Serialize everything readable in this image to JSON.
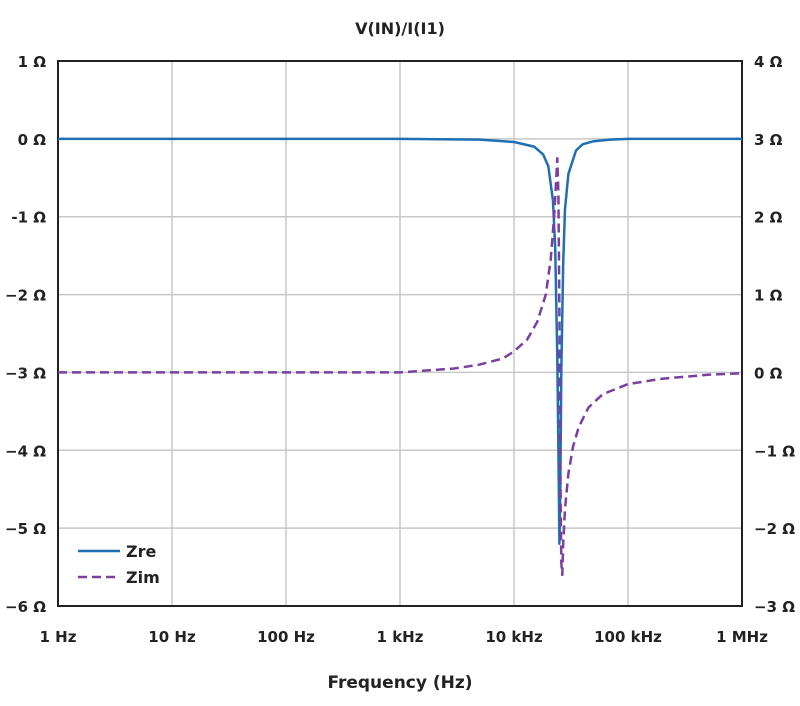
{
  "chart_data": {
    "type": "line",
    "title": "V(IN)/I(I1)",
    "xlabel": "Frequency (Hz)",
    "x_scale": "log",
    "xlim": [
      1,
      1000000
    ],
    "x_ticks": [
      {
        "value": 1,
        "label": "1 Hz"
      },
      {
        "value": 10,
        "label": "10 Hz"
      },
      {
        "value": 100,
        "label": "100 Hz"
      },
      {
        "value": 1000,
        "label": "1 kHz"
      },
      {
        "value": 10000,
        "label": "10 kHz"
      },
      {
        "value": 100000,
        "label": "100 kHz"
      },
      {
        "value": 1000000,
        "label": "1 MHz"
      }
    ],
    "y_left": {
      "lim": [
        -6,
        1
      ],
      "ticks": [
        {
          "value": 1,
          "label": "1 Ω"
        },
        {
          "value": 0,
          "label": "0 Ω"
        },
        {
          "value": -1,
          "label": "-1 Ω"
        },
        {
          "value": -2,
          "label": "−2 Ω"
        },
        {
          "value": -3,
          "label": "−3 Ω"
        },
        {
          "value": -4,
          "label": "−4 Ω"
        },
        {
          "value": -5,
          "label": "−5 Ω"
        },
        {
          "value": -6,
          "label": "−6 Ω"
        }
      ]
    },
    "y_right": {
      "lim": [
        -3,
        4
      ],
      "ticks": [
        {
          "value": 4,
          "label": "4 Ω"
        },
        {
          "value": 3,
          "label": "3 Ω"
        },
        {
          "value": 2,
          "label": "2 Ω"
        },
        {
          "value": 1,
          "label": "1 Ω"
        },
        {
          "value": 0,
          "label": "0 Ω"
        },
        {
          "value": -1,
          "label": "−1 Ω"
        },
        {
          "value": -2,
          "label": "−2 Ω"
        },
        {
          "value": -3,
          "label": "−3 Ω"
        }
      ]
    },
    "grid": true,
    "legend_position": "bottom-left",
    "series": [
      {
        "name": "Zre",
        "axis": "left",
        "style": "solid",
        "color": "#1f6fb4",
        "x": [
          1,
          10,
          100,
          1000,
          5000,
          10000,
          15000,
          18000,
          20000,
          22000,
          23000,
          24000,
          24500,
          25000,
          25500,
          26000,
          27000,
          28000,
          30000,
          35000,
          40000,
          50000,
          70000,
          100000,
          1000000
        ],
        "y": [
          0,
          0,
          0,
          0,
          -0.01,
          -0.04,
          -0.1,
          -0.2,
          -0.35,
          -0.8,
          -1.4,
          -2.8,
          -4.0,
          -5.2,
          -4.5,
          -3.0,
          -1.6,
          -0.9,
          -0.45,
          -0.15,
          -0.07,
          -0.03,
          -0.01,
          0,
          0
        ]
      },
      {
        "name": "Zim",
        "axis": "right",
        "style": "dashed",
        "color": "#7b3f9e",
        "x": [
          1,
          10,
          100,
          1000,
          3000,
          5000,
          8000,
          10000,
          13000,
          16000,
          19000,
          21000,
          22500,
          23500,
          24000,
          24500,
          25000,
          25500,
          26000,
          26500,
          27000,
          28000,
          30000,
          33000,
          37000,
          45000,
          60000,
          100000,
          200000,
          500000,
          1000000
        ],
        "y": [
          0,
          0,
          0,
          0,
          0.05,
          0.1,
          0.18,
          0.27,
          0.42,
          0.65,
          1.0,
          1.45,
          2.0,
          2.5,
          2.75,
          2.3,
          0.8,
          -1.2,
          -2.45,
          -2.6,
          -2.2,
          -1.75,
          -1.3,
          -0.95,
          -0.7,
          -0.45,
          -0.28,
          -0.15,
          -0.08,
          -0.03,
          -0.01
        ]
      }
    ]
  }
}
